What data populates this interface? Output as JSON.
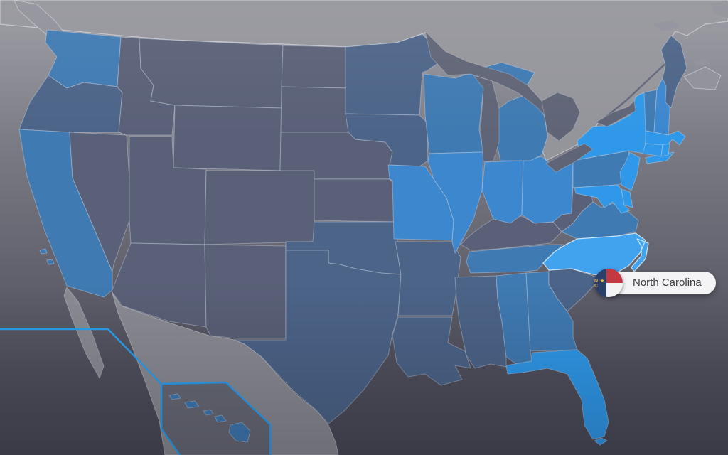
{
  "view": {
    "type": "us-states-choropleth",
    "highlighted_state": "North Carolina"
  },
  "tooltip": {
    "state_label": "North Carolina",
    "flag_letters": "N ★ C"
  },
  "colors": {
    "foreign_land": "#94949b",
    "mexico_land": "#8b8b93",
    "island_land": "#90909a",
    "lake_water": "#5f6476",
    "river": "#62677a",
    "inset_line": "#2aa1f2",
    "inset_fill": "rgba(30,36,56,0.32)",
    "state_border": "rgba(208,218,232,0.42)",
    "hover_border": "rgba(240,250,255,0.75)",
    "shades": {
      "dark": "#596077",
      "slate": "#4c6488",
      "medium": "#3f7ab2",
      "blue2": "#3d87cf",
      "bright": "#2f98e8",
      "hover": "#41a3ee"
    },
    "flag_blue": "#2b3f6b",
    "flag_red": "#c43842",
    "flag_white": "#f3f3f4",
    "flag_gold": "#e9b949",
    "tooltip_bg": "#f4f4f6",
    "tooltip_text": "#3c3c3e"
  },
  "states": [
    {
      "id": "WA",
      "name": "Washington",
      "shade": "medium"
    },
    {
      "id": "OR",
      "name": "Oregon",
      "shade": "slate"
    },
    {
      "id": "CA",
      "name": "California",
      "shade": "medium"
    },
    {
      "id": "NV",
      "name": "Nevada",
      "shade": "dark"
    },
    {
      "id": "ID",
      "name": "Idaho",
      "shade": "dark"
    },
    {
      "id": "MT",
      "name": "Montana",
      "shade": "dark"
    },
    {
      "id": "WY",
      "name": "Wyoming",
      "shade": "dark"
    },
    {
      "id": "UT",
      "name": "Utah",
      "shade": "dark"
    },
    {
      "id": "CO",
      "name": "Colorado",
      "shade": "dark"
    },
    {
      "id": "AZ",
      "name": "Arizona",
      "shade": "dark"
    },
    {
      "id": "NM",
      "name": "New Mexico",
      "shade": "dark"
    },
    {
      "id": "ND",
      "name": "North Dakota",
      "shade": "dark"
    },
    {
      "id": "SD",
      "name": "South Dakota",
      "shade": "dark"
    },
    {
      "id": "NE",
      "name": "Nebraska",
      "shade": "dark"
    },
    {
      "id": "KS",
      "name": "Kansas",
      "shade": "dark"
    },
    {
      "id": "OK",
      "name": "Oklahoma",
      "shade": "slate"
    },
    {
      "id": "TX",
      "name": "Texas",
      "shade": "slate"
    },
    {
      "id": "MN",
      "name": "Minnesota",
      "shade": "slate"
    },
    {
      "id": "IA",
      "name": "Iowa",
      "shade": "slate"
    },
    {
      "id": "MO",
      "name": "Missouri",
      "shade": "blue2"
    },
    {
      "id": "AR",
      "name": "Arkansas",
      "shade": "slate"
    },
    {
      "id": "LA",
      "name": "Louisiana",
      "shade": "slate"
    },
    {
      "id": "WI",
      "name": "Wisconsin",
      "shade": "medium"
    },
    {
      "id": "IL",
      "name": "Illinois",
      "shade": "blue2"
    },
    {
      "id": "MS",
      "name": "Mississippi",
      "shade": "slate"
    },
    {
      "id": "AL",
      "name": "Alabama",
      "shade": "medium"
    },
    {
      "id": "TN",
      "name": "Tennessee",
      "shade": "medium"
    },
    {
      "id": "KY",
      "name": "Kentucky",
      "shade": "dark"
    },
    {
      "id": "IN",
      "name": "Indiana",
      "shade": "blue2"
    },
    {
      "id": "OH",
      "name": "Ohio",
      "shade": "blue2"
    },
    {
      "id": "MI",
      "name": "Michigan",
      "shade": "medium"
    },
    {
      "id": "GA",
      "name": "Georgia",
      "shade": "medium"
    },
    {
      "id": "FL",
      "name": "Florida",
      "shade": "bright"
    },
    {
      "id": "SC",
      "name": "South Carolina",
      "shade": "slate"
    },
    {
      "id": "VA",
      "name": "Virginia",
      "shade": "medium"
    },
    {
      "id": "WV",
      "name": "West Virginia",
      "shade": "dark"
    },
    {
      "id": "PA",
      "name": "Pennsylvania",
      "shade": "medium"
    },
    {
      "id": "MD",
      "name": "Maryland",
      "shade": "bright"
    },
    {
      "id": "DE",
      "name": "Delaware",
      "shade": "bright"
    },
    {
      "id": "NJ",
      "name": "New Jersey",
      "shade": "bright"
    },
    {
      "id": "NC",
      "name": "North Carolina",
      "shade": "hover"
    },
    {
      "id": "NY",
      "name": "New York",
      "shade": "bright"
    },
    {
      "id": "VT",
      "name": "Vermont",
      "shade": "medium"
    },
    {
      "id": "NH",
      "name": "New Hampshire",
      "shade": "blue2"
    },
    {
      "id": "MA",
      "name": "Massachusetts",
      "shade": "bright"
    },
    {
      "id": "CT",
      "name": "Connecticut",
      "shade": "bright"
    },
    {
      "id": "RI",
      "name": "Rhode Island",
      "shade": "bright"
    },
    {
      "id": "ME",
      "name": "Maine",
      "shade": "slate"
    },
    {
      "id": "HI",
      "name": "Hawaii",
      "shade": "medium"
    }
  ]
}
